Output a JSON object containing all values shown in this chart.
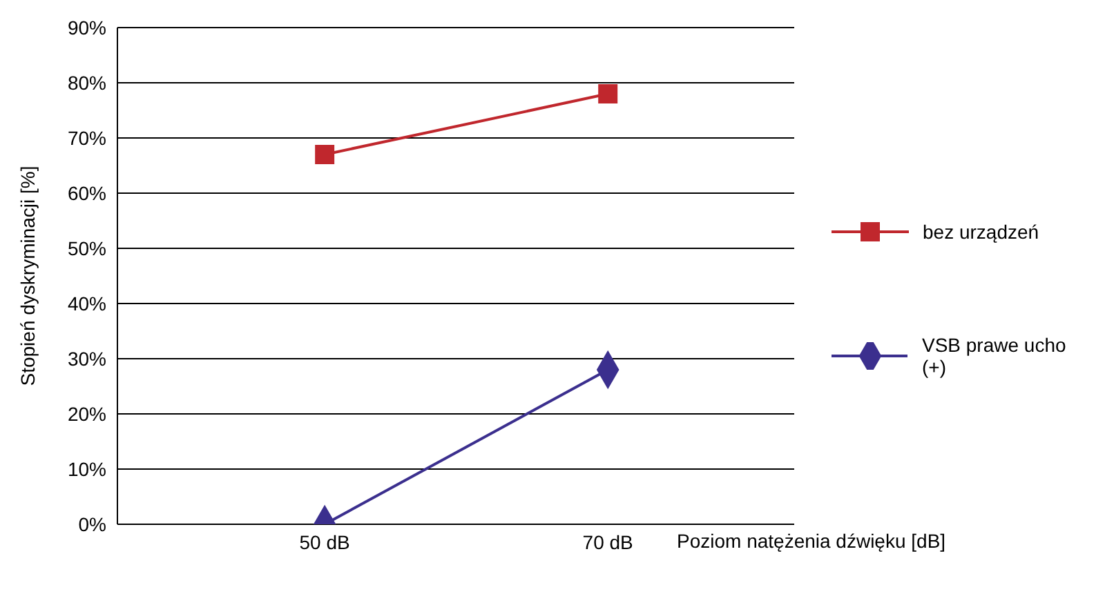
{
  "chart_data": {
    "type": "line",
    "categories": [
      "50 dB",
      "70 dB"
    ],
    "xlabel": "Poziom natężenia dźwięku [dB]",
    "ylabel": "Stopień dyskryminacji [%]",
    "ylim": [
      0,
      90
    ],
    "yticks": [
      {
        "value": 0,
        "label": "0%"
      },
      {
        "value": 10,
        "label": "10%"
      },
      {
        "value": 20,
        "label": "20%"
      },
      {
        "value": 30,
        "label": "30%"
      },
      {
        "value": 40,
        "label": "40%"
      },
      {
        "value": 50,
        "label": "50%"
      },
      {
        "value": 60,
        "label": "60%"
      },
      {
        "value": 70,
        "label": "70%"
      },
      {
        "value": 80,
        "label": "80%"
      },
      {
        "value": 90,
        "label": "90%"
      }
    ],
    "grid": "y",
    "legend": "right",
    "line_style": "solid",
    "series": [
      {
        "name": "bez urządzeń",
        "color": "#c0272d",
        "values": [
          67,
          78
        ],
        "marker": "square"
      },
      {
        "name": "VSB prawe ucho (+)",
        "color": "#3b2f8e",
        "values": [
          0,
          28
        ],
        "marker": "diamond"
      }
    ]
  }
}
